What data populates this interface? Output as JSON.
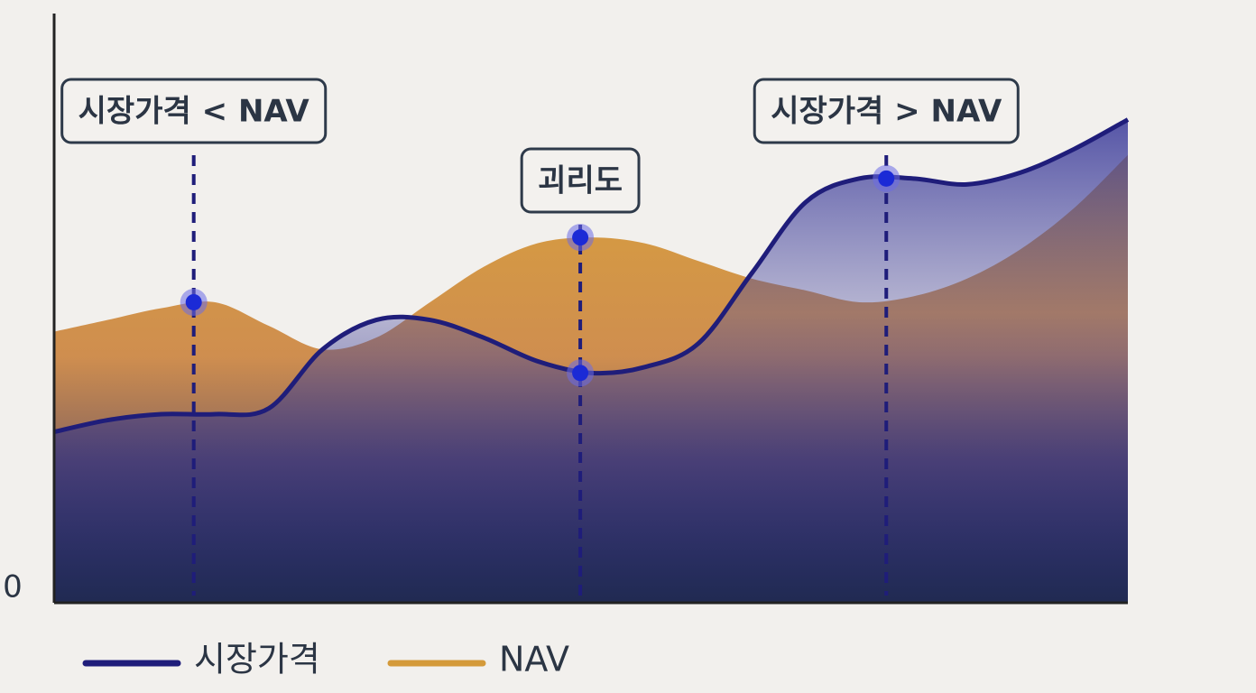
{
  "chart_data": {
    "type": "area",
    "x": [
      0,
      1,
      2,
      3,
      4,
      5,
      6,
      7,
      8,
      9,
      10,
      11,
      12,
      13,
      14,
      15,
      16,
      17,
      18,
      19,
      20
    ],
    "xlim": [
      0,
      20
    ],
    "ylim": [
      0,
      100
    ],
    "yticks": [
      0
    ],
    "series": [
      {
        "name": "시장가격",
        "color": "#1f1d7a",
        "values": [
          29,
          31,
          32,
          32,
          33,
          43,
          48,
          48,
          45,
          41,
          39,
          40,
          44,
          56,
          68,
          72,
          72,
          71,
          73,
          77,
          82
        ]
      },
      {
        "name": "NAV",
        "color": "#d49a3a",
        "values": [
          46,
          48,
          50,
          51,
          47,
          43,
          45,
          51,
          57,
          61,
          62,
          61,
          58,
          55,
          53,
          51,
          52,
          55,
          60,
          67,
          76
        ]
      }
    ],
    "annotations": [
      {
        "text": "시장가격 < NAV",
        "x": 2.6,
        "points": [
          51
        ]
      },
      {
        "text": "괴리도",
        "x": 9.8,
        "points": [
          62,
          39
        ]
      },
      {
        "text": "시장가격 > NAV",
        "x": 15.5,
        "points": [
          72
        ]
      }
    ]
  }
}
